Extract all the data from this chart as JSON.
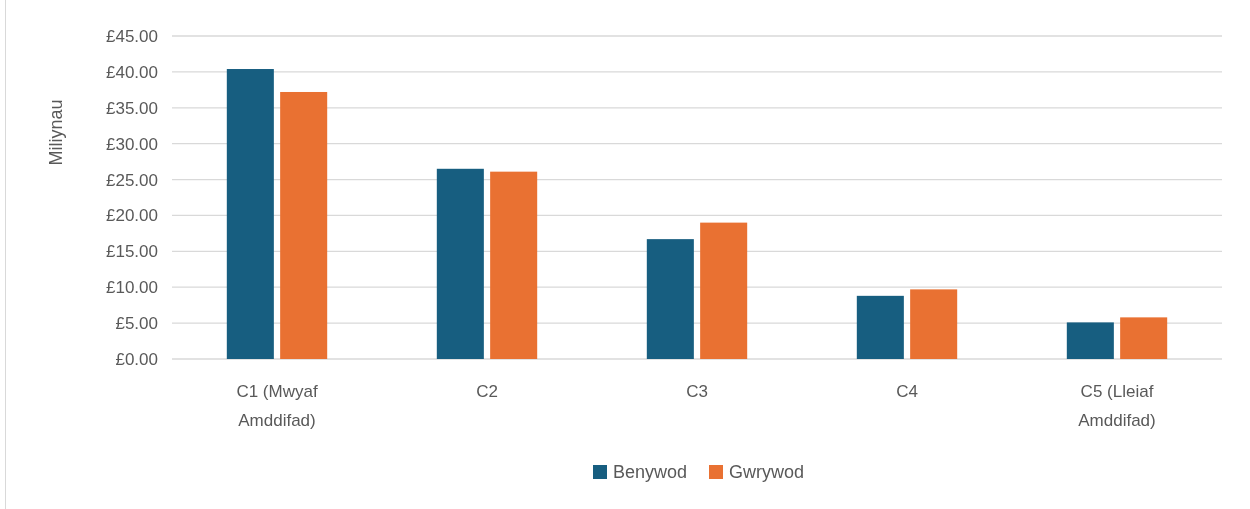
{
  "chart_data": {
    "type": "bar",
    "ylabel": "Miliynau",
    "categories": [
      "C1 (Mwyaf Amddifad)",
      "C2",
      "C3",
      "C4",
      "C5 (Lleiaf Amddifad)"
    ],
    "series": [
      {
        "name": "Benywod",
        "color": "#175e80",
        "values": [
          40.4,
          26.5,
          16.7,
          8.8,
          5.1
        ]
      },
      {
        "name": "Gwrywod",
        "color": "#e97132",
        "values": [
          37.2,
          26.1,
          19.0,
          9.7,
          5.8
        ]
      }
    ],
    "ylim": [
      0,
      45
    ],
    "yticks": [
      {
        "value": 0,
        "label": "£0.00"
      },
      {
        "value": 5,
        "label": "£5.00"
      },
      {
        "value": 10,
        "label": "£10.00"
      },
      {
        "value": 15,
        "label": "£15.00"
      },
      {
        "value": 20,
        "label": "£20.00"
      },
      {
        "value": 25,
        "label": "£25.00"
      },
      {
        "value": 30,
        "label": "£30.00"
      },
      {
        "value": 35,
        "label": "£35.00"
      },
      {
        "value": 40,
        "label": "£40.00"
      },
      {
        "value": 45,
        "label": "£45.00"
      }
    ],
    "grid": "y",
    "legend": "bottom"
  }
}
